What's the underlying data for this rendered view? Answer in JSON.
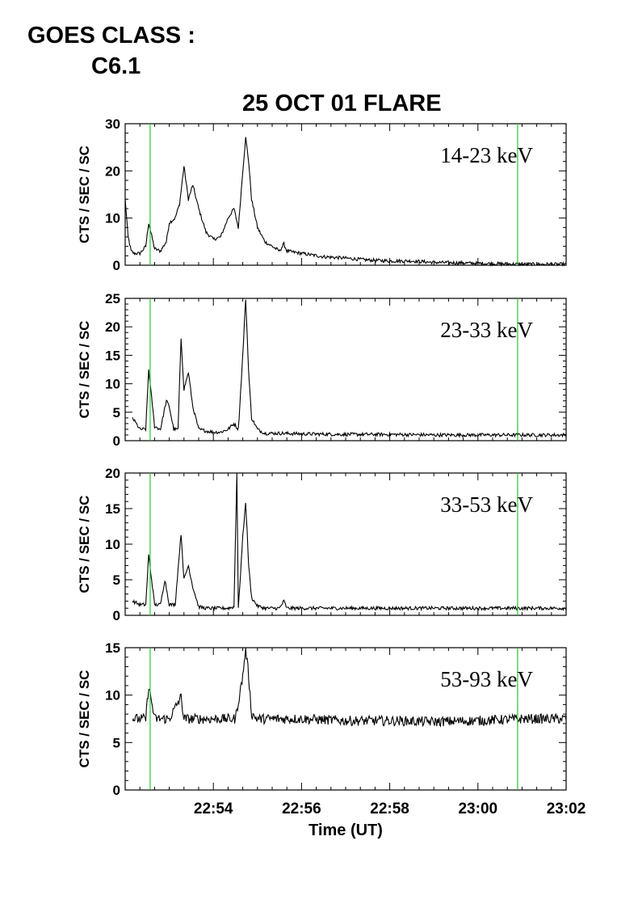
{
  "header": {
    "goes_label": "GOES CLASS :",
    "goes_value": "C6.1",
    "title": "25 OCT 01 FLARE"
  },
  "colors": {
    "trace": "#000000",
    "marker": "#22cc22",
    "axes": "#000000"
  },
  "chart_data": {
    "type": "line",
    "title": "25 OCT 01 FLARE",
    "xlabel": "Time (UT)",
    "x_ticks": [
      "22:54",
      "22:56",
      "22:58",
      "23:00",
      "23:02"
    ],
    "x_range": [
      "22:52:00",
      "23:02:00"
    ],
    "markers": [
      "22:52:34",
      "23:00:54"
    ],
    "grid": false,
    "panels": [
      {
        "name": "14-23 keV",
        "ylabel": "CTS / SEC / SC",
        "ylim": [
          0,
          30
        ],
        "yticks": [
          0,
          10,
          20,
          30
        ],
        "x": [
          "22:52:00",
          "22:52:04",
          "22:52:08",
          "22:52:12",
          "22:52:20",
          "22:52:28",
          "22:52:32",
          "22:52:40",
          "22:52:48",
          "22:52:56",
          "22:53:00",
          "22:53:08",
          "22:53:14",
          "22:53:20",
          "22:53:26",
          "22:53:32",
          "22:53:40",
          "22:53:50",
          "22:54:00",
          "22:54:10",
          "22:54:20",
          "22:54:28",
          "22:54:34",
          "22:54:40",
          "22:54:44",
          "22:54:48",
          "22:54:52",
          "22:55:00",
          "22:55:10",
          "22:55:20",
          "22:55:30",
          "22:55:36",
          "22:55:40",
          "22:56:00",
          "22:56:30",
          "22:57:00",
          "22:57:30",
          "22:58:00",
          "22:58:30",
          "22:59:00",
          "22:59:30",
          "23:00:00",
          "23:00:30",
          "23:01:00",
          "23:01:30",
          "23:02:00"
        ],
        "values": [
          14,
          6,
          3,
          2.5,
          2.5,
          4,
          9,
          3.5,
          3,
          5,
          9,
          10,
          13,
          21,
          14,
          17,
          12,
          7,
          5.5,
          6,
          10,
          12,
          8,
          20,
          27,
          22,
          14,
          8,
          5,
          4,
          3,
          4.5,
          3,
          2.5,
          1.8,
          1.5,
          1.1,
          0.9,
          0.9,
          0.6,
          0.5,
          0.4,
          0.3,
          0.2,
          0.2,
          0.2
        ]
      },
      {
        "name": "23-33 keV",
        "ylabel": "CTS / SEC / SC",
        "ylim": [
          0,
          25
        ],
        "yticks": [
          0,
          5,
          10,
          15,
          20,
          25
        ],
        "x": [
          "22:52:10",
          "22:52:20",
          "22:52:28",
          "22:52:32",
          "22:52:40",
          "22:52:48",
          "22:52:56",
          "22:53:00",
          "22:53:06",
          "22:53:12",
          "22:53:16",
          "22:53:20",
          "22:53:26",
          "22:53:32",
          "22:53:40",
          "22:53:50",
          "22:54:00",
          "22:54:10",
          "22:54:20",
          "22:54:28",
          "22:54:34",
          "22:54:40",
          "22:54:44",
          "22:54:48",
          "22:54:52",
          "22:55:00",
          "22:55:10",
          "22:55:30",
          "22:56:00",
          "22:57:00",
          "22:58:00",
          "22:59:00",
          "23:00:00",
          "23:01:00",
          "23:02:00"
        ],
        "values": [
          4,
          2,
          2,
          12.5,
          2.5,
          2,
          7,
          6,
          2,
          2,
          18,
          9,
          12,
          6,
          2,
          1.7,
          1.5,
          1.5,
          2,
          3,
          2,
          15,
          25,
          12,
          4,
          2,
          1.3,
          1.3,
          1.2,
          1.1,
          1.1,
          1.0,
          1.0,
          1.0,
          1.0
        ]
      },
      {
        "name": "33-53 keV",
        "ylabel": "CTS / SEC / SC",
        "ylim": [
          0,
          20
        ],
        "yticks": [
          0,
          5,
          10,
          15,
          20
        ],
        "x": [
          "22:52:10",
          "22:52:20",
          "22:52:28",
          "22:52:32",
          "22:52:40",
          "22:52:48",
          "22:52:54",
          "22:53:00",
          "22:53:08",
          "22:53:16",
          "22:53:20",
          "22:53:26",
          "22:53:32",
          "22:53:40",
          "22:53:50",
          "22:54:00",
          "22:54:10",
          "22:54:20",
          "22:54:28",
          "22:54:32",
          "22:54:34",
          "22:54:40",
          "22:54:44",
          "22:54:48",
          "22:54:52",
          "22:55:00",
          "22:55:10",
          "22:55:30",
          "22:55:36",
          "22:55:40",
          "22:56:00",
          "22:57:00",
          "22:58:00",
          "22:59:00",
          "23:00:00",
          "23:01:00",
          "23:02:00"
        ],
        "values": [
          2,
          1.5,
          1.5,
          8.5,
          1.5,
          1.5,
          5,
          1.5,
          1.5,
          11.5,
          5,
          7,
          4,
          1.2,
          1,
          1,
          1,
          1,
          1.2,
          20,
          1,
          11,
          16,
          7,
          2.5,
          1.3,
          1,
          1,
          2,
          1,
          1,
          1,
          1,
          1,
          1,
          1,
          1
        ]
      },
      {
        "name": "53-93 keV",
        "ylabel": "CTS / SEC / SC",
        "ylim": [
          0,
          15
        ],
        "yticks": [
          0,
          5,
          10,
          15
        ],
        "x": [
          "22:52:10",
          "22:52:20",
          "22:52:28",
          "22:52:32",
          "22:52:40",
          "22:53:00",
          "22:53:16",
          "22:53:20",
          "22:53:30",
          "22:54:00",
          "22:54:30",
          "22:54:40",
          "22:54:44",
          "22:54:48",
          "22:54:52",
          "22:55:00",
          "22:56:00",
          "22:57:00",
          "22:58:00",
          "22:59:00",
          "23:00:00",
          "23:01:00",
          "23:02:00"
        ],
        "values": [
          7.5,
          7.5,
          7.5,
          11,
          7.5,
          7.5,
          9.8,
          7.5,
          7.5,
          7.5,
          7.5,
          12,
          15,
          12,
          8,
          7.5,
          7.5,
          7.3,
          7.3,
          7.2,
          7.3,
          7.5,
          7.5
        ]
      }
    ]
  }
}
